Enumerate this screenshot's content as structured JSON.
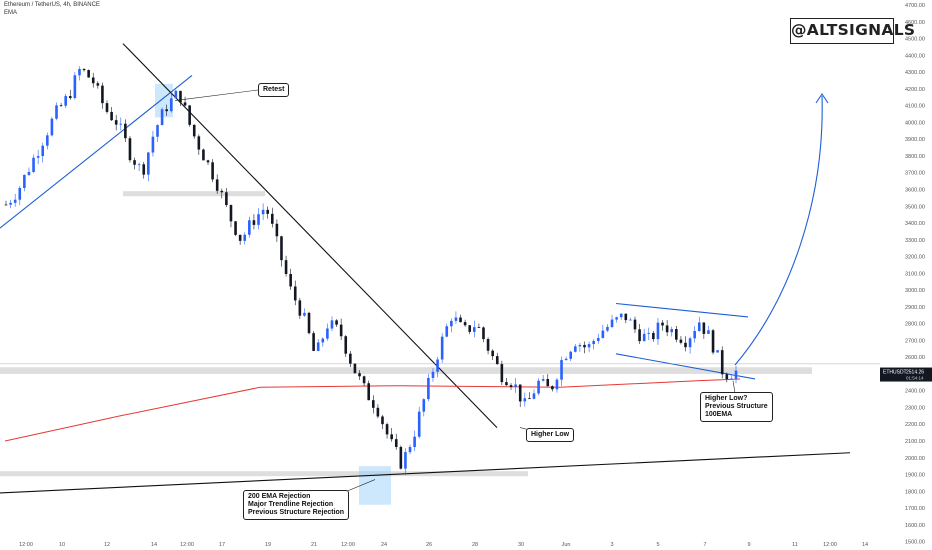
{
  "header": {
    "symbol_line": "Ethereum / TetherUS, 4h, BINANCE",
    "indicator": "EMA"
  },
  "watermark": "@ALTSIGNALS",
  "price_tag": {
    "symbol": "ETHUSDT",
    "price": "2514.26",
    "countdown": "01:54:14"
  },
  "annotations": {
    "retest": "Retest",
    "higher_low": "Higher Low",
    "rejection_1": "200 EMA Rejection",
    "rejection_2": "Major Trendline Rejection",
    "rejection_3": "Previous Structure Rejection",
    "hl_question_1": "Higher Low?",
    "hl_question_2": "Previous Structure",
    "hl_question_3": "100EMA"
  },
  "colors": {
    "up": "#2962ff",
    "down": "#131722",
    "ema": "#e53935",
    "zone": "#d6d6d6",
    "highlight": "#90caf9"
  },
  "chart_data": {
    "type": "candlestick",
    "timeframe": "4h",
    "x_tick_labels": [
      "12:00",
      "10",
      "12",
      "14",
      "12:00",
      "17",
      "19",
      "21",
      "12:00",
      "24",
      "26",
      "28",
      "30",
      "Jun",
      "3",
      "5",
      "7",
      "9",
      "11",
      "12:00",
      "14"
    ],
    "y_tick_labels": [
      4700,
      4600,
      4500,
      4400,
      4300,
      4200,
      4100,
      4000,
      3900,
      3800,
      3700,
      3600,
      3500,
      3400,
      3300,
      3200,
      3100,
      3000,
      2900,
      2800,
      2700,
      2600,
      2500,
      2400,
      2300,
      2200,
      2100,
      2000,
      1900,
      1800,
      1700,
      1600,
      1500
    ],
    "ylim": [
      1450,
      4730
    ],
    "last_price": 2514.26,
    "close_path": [
      3510,
      3600,
      3750,
      3900,
      4050,
      4150,
      4320,
      4250,
      4080,
      4000,
      3820,
      3700,
      3950,
      4100,
      4180,
      3950,
      3800,
      3650,
      3450,
      3300,
      3420,
      3500,
      3250,
      3000,
      2850,
      2600,
      2800,
      2750,
      2550,
      2400,
      2300,
      2100,
      1960,
      2150,
      2400,
      2650,
      2850,
      2750,
      2800,
      2650,
      2500,
      2450,
      2300,
      2450,
      2400,
      2600,
      2700,
      2650,
      2750,
      2800,
      2850,
      2750,
      2700,
      2800,
      2750,
      2700,
      2820,
      2700,
      2500,
      2514
    ],
    "ema_points": [
      [
        5,
        2100
      ],
      [
        120,
        2250
      ],
      [
        260,
        2420
      ],
      [
        400,
        2430
      ],
      [
        560,
        2420
      ],
      [
        700,
        2460
      ],
      [
        740,
        2470
      ]
    ],
    "zones": [
      [
        3560,
        3590
      ],
      [
        2500,
        2540
      ],
      [
        1890,
        1920
      ]
    ],
    "lines": [
      "upward trendline from lower left to the Retest point",
      "major descending trendline from the top to near Higher Low",
      "long ascending support line along the bottom",
      "descending channel / wedge lines on the right",
      "projected curved arrow upward"
    ]
  }
}
